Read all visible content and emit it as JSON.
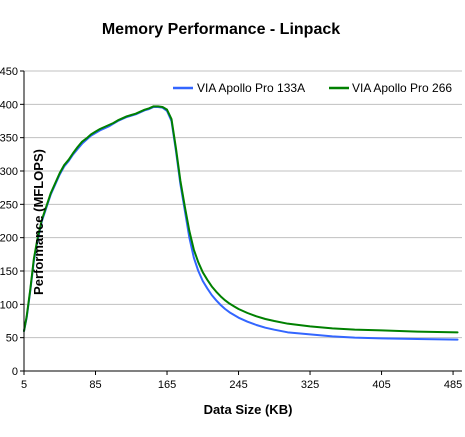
{
  "chart_data": {
    "type": "line",
    "title": "Memory Performance - Linpack",
    "xlabel": "Data Size (KB)",
    "ylabel": "Performance (MFLOPS)",
    "xlim": [
      5,
      495
    ],
    "ylim": [
      0,
      450
    ],
    "xticks": [
      5,
      85,
      165,
      245,
      325,
      405,
      485
    ],
    "yticks": [
      0,
      50,
      100,
      150,
      200,
      250,
      300,
      350,
      400,
      450
    ],
    "grid": true,
    "legend_position": "top-right",
    "series": [
      {
        "name": "VIA Apollo Pro 133A",
        "color": "#3366ff",
        "x": [
          5,
          8,
          12,
          16,
          20,
          25,
          30,
          35,
          40,
          45,
          50,
          55,
          60,
          65,
          70,
          75,
          80,
          85,
          90,
          95,
          100,
          105,
          110,
          115,
          120,
          125,
          130,
          135,
          140,
          145,
          150,
          155,
          160,
          165,
          170,
          175,
          180,
          185,
          190,
          195,
          200,
          205,
          210,
          215,
          220,
          225,
          230,
          235,
          240,
          245,
          255,
          265,
          275,
          285,
          300,
          325,
          350,
          375,
          405,
          445,
          490
        ],
        "y": [
          60,
          80,
          120,
          165,
          195,
          225,
          245,
          265,
          280,
          295,
          307,
          315,
          325,
          333,
          341,
          347,
          353,
          357,
          361,
          364,
          367,
          371,
          375,
          378,
          381,
          383,
          385,
          388,
          391,
          393,
          396,
          396,
          395,
          390,
          375,
          330,
          280,
          240,
          200,
          170,
          150,
          135,
          124,
          114,
          106,
          99,
          93,
          88,
          84,
          80,
          74,
          69,
          65,
          62,
          58,
          55,
          52,
          50,
          49,
          48,
          47
        ]
      },
      {
        "name": "VIA Apollo Pro 266",
        "color": "#008000",
        "x": [
          5,
          8,
          12,
          16,
          20,
          25,
          30,
          35,
          40,
          45,
          50,
          55,
          60,
          65,
          70,
          75,
          80,
          85,
          90,
          95,
          100,
          105,
          110,
          115,
          120,
          125,
          130,
          135,
          140,
          145,
          150,
          155,
          160,
          165,
          170,
          175,
          180,
          185,
          190,
          195,
          200,
          205,
          210,
          215,
          220,
          225,
          230,
          235,
          240,
          245,
          255,
          265,
          275,
          285,
          300,
          325,
          350,
          375,
          405,
          445,
          490
        ],
        "y": [
          60,
          82,
          122,
          168,
          198,
          227,
          247,
          267,
          282,
          297,
          309,
          317,
          327,
          336,
          344,
          349,
          355,
          359,
          363,
          366,
          369,
          372,
          376,
          379,
          382,
          384,
          386,
          389,
          392,
          394,
          397,
          397,
          396,
          392,
          378,
          334,
          285,
          246,
          210,
          182,
          163,
          148,
          137,
          127,
          119,
          112,
          106,
          101,
          97,
          93,
          87,
          82,
          78,
          75,
          71,
          67,
          64,
          62,
          61,
          59,
          58
        ]
      }
    ]
  }
}
